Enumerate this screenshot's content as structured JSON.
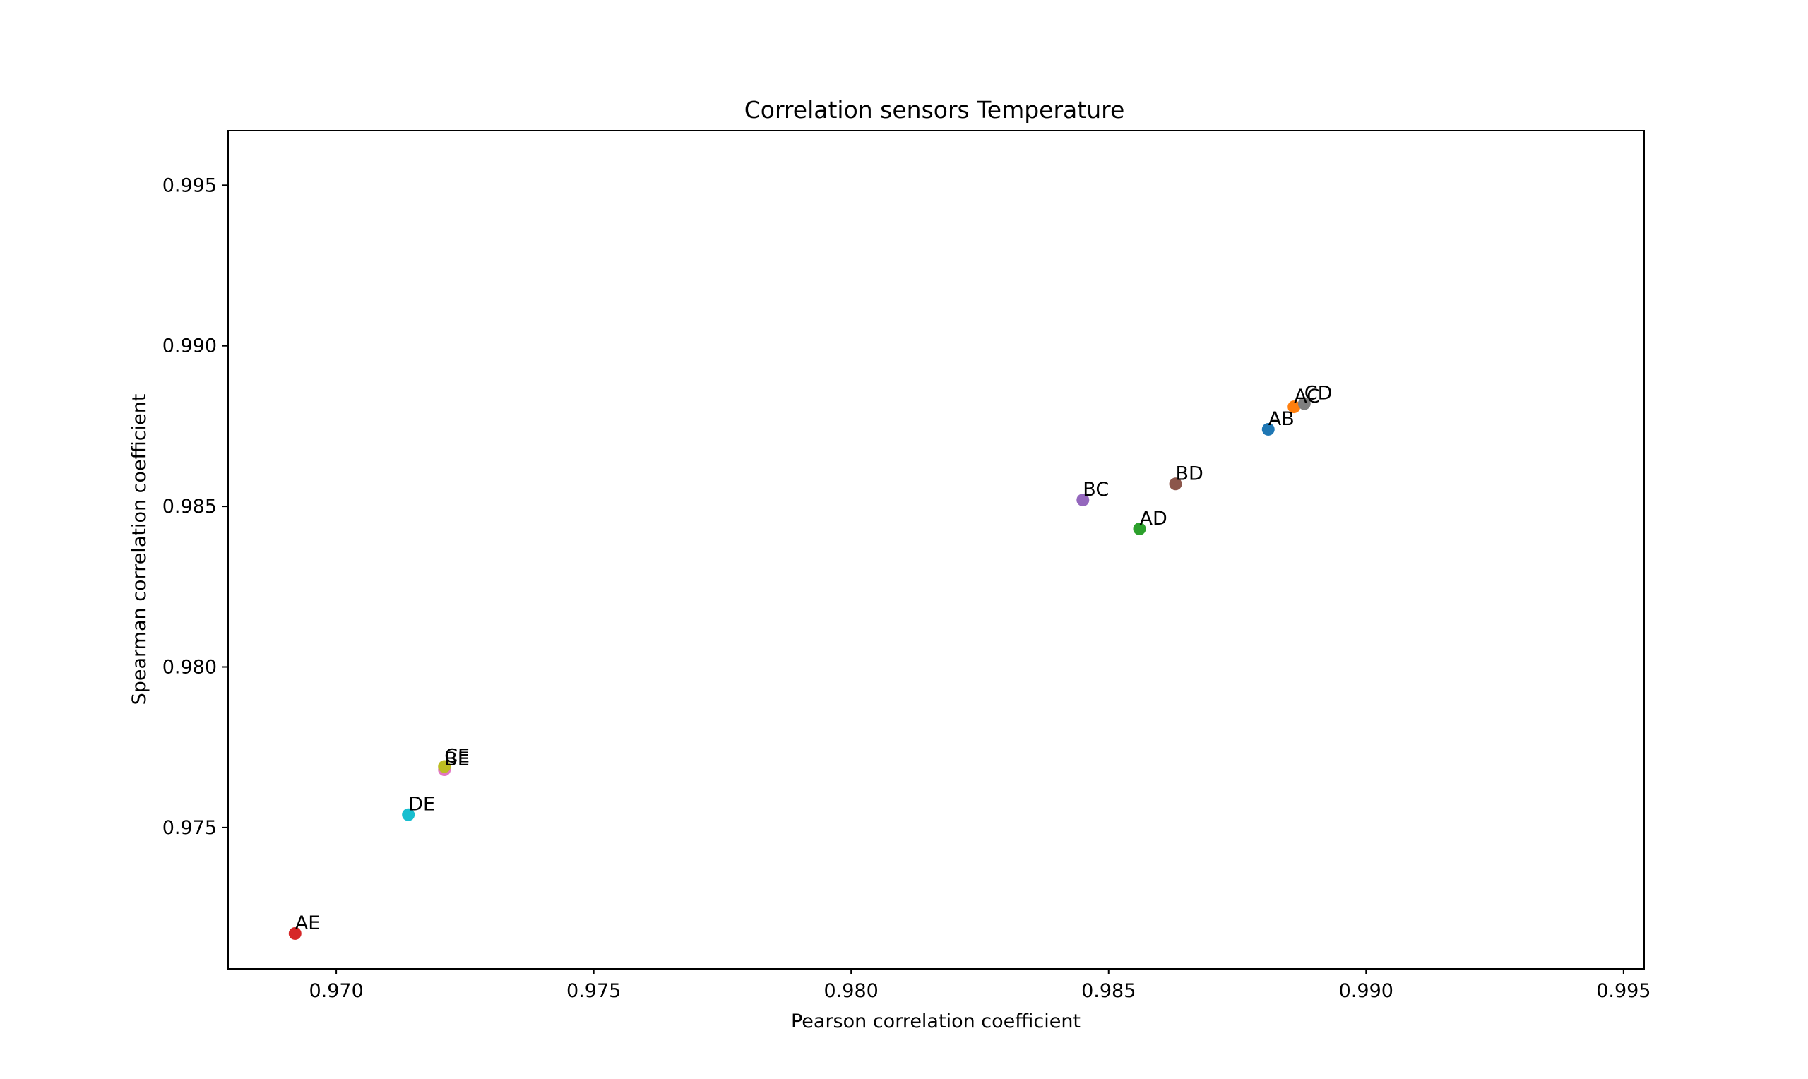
{
  "chart_data": {
    "type": "scatter",
    "title": "Correlation sensors Temperature",
    "xlabel": "Pearson correlation coefficient",
    "ylabel": "Spearman correlation coefficient",
    "xlim": [
      0.9679,
      0.9954
    ],
    "ylim": [
      0.9706,
      0.9967
    ],
    "xticks": [
      0.97,
      0.975,
      0.98,
      0.985,
      0.99,
      0.995
    ],
    "xtick_labels": [
      "0.970",
      "0.975",
      "0.980",
      "0.985",
      "0.990",
      "0.995"
    ],
    "yticks": [
      0.975,
      0.98,
      0.985,
      0.99,
      0.995
    ],
    "ytick_labels": [
      "0.975",
      "0.980",
      "0.985",
      "0.990",
      "0.995"
    ],
    "grid": false,
    "points": [
      {
        "label": "AB",
        "x": 0.9881,
        "y": 0.9874,
        "color": "#1f77b4"
      },
      {
        "label": "AC",
        "x": 0.9886,
        "y": 0.9881,
        "color": "#ff7f0e"
      },
      {
        "label": "AD",
        "x": 0.9856,
        "y": 0.9843,
        "color": "#2ca02c"
      },
      {
        "label": "AE",
        "x": 0.9692,
        "y": 0.9717,
        "color": "#d62728"
      },
      {
        "label": "BC",
        "x": 0.9845,
        "y": 0.9852,
        "color": "#9467bd"
      },
      {
        "label": "BD",
        "x": 0.9863,
        "y": 0.9857,
        "color": "#8c564b"
      },
      {
        "label": "BE",
        "x": 0.9721,
        "y": 0.9768,
        "color": "#e377c2"
      },
      {
        "label": "CD",
        "x": 0.9888,
        "y": 0.9882,
        "color": "#7f7f7f"
      },
      {
        "label": "CE",
        "x": 0.9721,
        "y": 0.9769,
        "color": "#bcbd22"
      },
      {
        "label": "DE",
        "x": 0.9714,
        "y": 0.9754,
        "color": "#17becf"
      }
    ]
  }
}
